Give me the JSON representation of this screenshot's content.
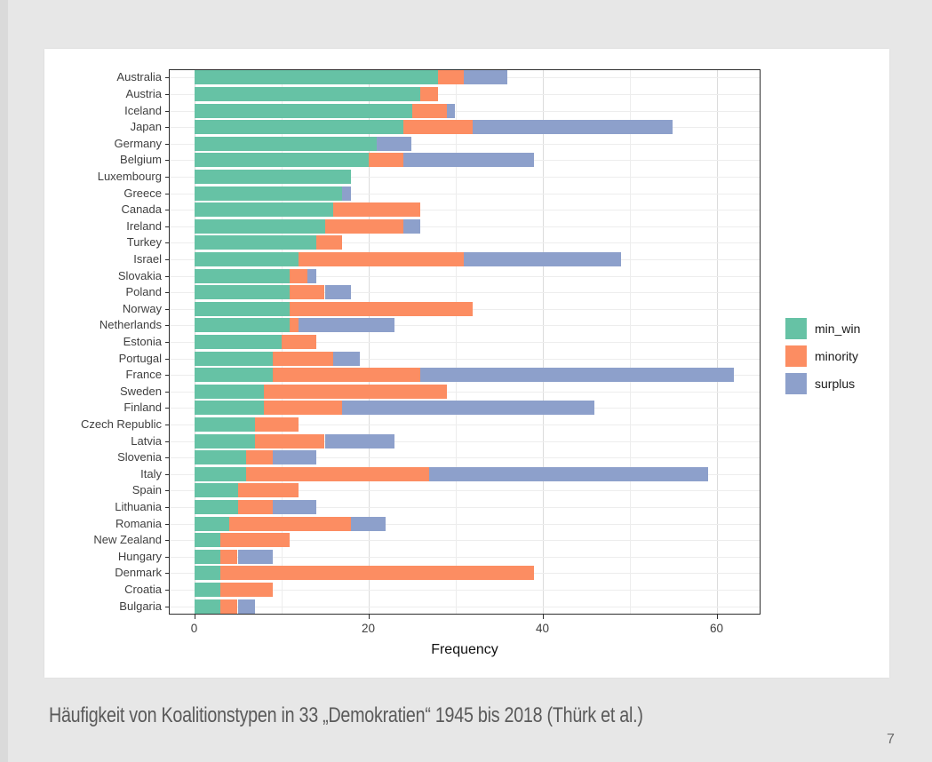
{
  "slide": {
    "caption": "Häufigkeit von Koalitionstypen in 33 „Demokratien“ 1945 bis 2018 (Thürk et al.)",
    "page_number": "7",
    "background_color": "#e7e7e7",
    "card_color": "#ffffff"
  },
  "chart_data": {
    "type": "bar",
    "orientation": "horizontal",
    "stacked": true,
    "title": "",
    "xlabel": "Frequency",
    "ylabel": "",
    "xlim": [
      0,
      65
    ],
    "x_major_ticks": [
      0,
      20,
      40,
      60
    ],
    "x_minor_gridlines": [
      10,
      30,
      50
    ],
    "grid": true,
    "legend_position": "right",
    "panel_border_color": "#2e2e2e",
    "axis_text_color": "#404040",
    "categories": [
      "Australia",
      "Austria",
      "Iceland",
      "Japan",
      "Germany",
      "Belgium",
      "Luxembourg",
      "Greece",
      "Canada",
      "Ireland",
      "Turkey",
      "Israel",
      "Slovakia",
      "Poland",
      "Norway",
      "Netherlands",
      "Estonia",
      "Portugal",
      "France",
      "Sweden",
      "Finland",
      "Czech Republic",
      "Latvia",
      "Slovenia",
      "Italy",
      "Spain",
      "Lithuania",
      "Romania",
      "New Zealand",
      "Hungary",
      "Denmark",
      "Croatia",
      "Bulgaria"
    ],
    "series": [
      {
        "name": "min_win",
        "color": "#66c2a5",
        "values": [
          28,
          26,
          25,
          24,
          21,
          20,
          18,
          17,
          16,
          15,
          14,
          12,
          11,
          11,
          11,
          11,
          10,
          9,
          9,
          8,
          8,
          7,
          7,
          6,
          6,
          5,
          5,
          4,
          3,
          3,
          3,
          3,
          3
        ]
      },
      {
        "name": "minority",
        "color": "#fc8d62",
        "values": [
          3,
          2,
          4,
          8,
          0,
          4,
          0,
          0,
          10,
          9,
          3,
          19,
          2,
          4,
          21,
          1,
          4,
          7,
          17,
          21,
          9,
          5,
          8,
          3,
          21,
          7,
          4,
          14,
          8,
          2,
          36,
          6,
          2
        ]
      },
      {
        "name": "surplus",
        "color": "#8da0cb",
        "values": [
          5,
          0,
          1,
          23,
          4,
          15,
          0,
          1,
          0,
          2,
          0,
          18,
          1,
          3,
          0,
          11,
          0,
          3,
          36,
          0,
          29,
          0,
          8,
          5,
          32,
          0,
          5,
          4,
          0,
          4,
          0,
          0,
          2
        ]
      }
    ]
  }
}
